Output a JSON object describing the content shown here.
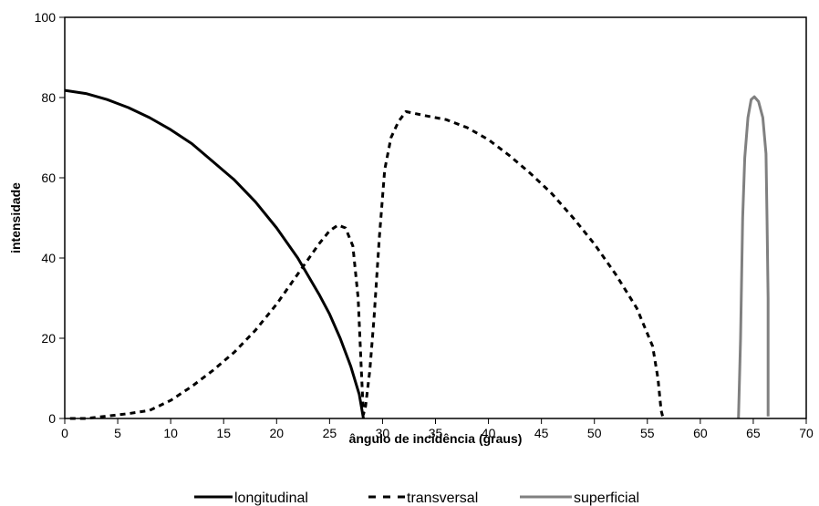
{
  "chart_data": {
    "type": "line",
    "title": "",
    "xlabel": "ângulo de incidência (graus)",
    "ylabel": "intensidade",
    "xlim": [
      0,
      70
    ],
    "ylim": [
      0,
      100
    ],
    "xticks": [
      0,
      5,
      10,
      15,
      20,
      25,
      30,
      35,
      40,
      45,
      50,
      55,
      60,
      65,
      70
    ],
    "yticks": [
      0,
      20,
      40,
      60,
      80,
      100
    ],
    "grid": false,
    "legend_position": "bottom",
    "series": [
      {
        "name": "longitudinal",
        "color": "#000000",
        "style": "solid",
        "points": [
          [
            0,
            81.8
          ],
          [
            2,
            81
          ],
          [
            4,
            79.5
          ],
          [
            6,
            77.5
          ],
          [
            8,
            75
          ],
          [
            10,
            72
          ],
          [
            12,
            68.5
          ],
          [
            14,
            64
          ],
          [
            16,
            59.5
          ],
          [
            18,
            54
          ],
          [
            20,
            47.5
          ],
          [
            22,
            40
          ],
          [
            24,
            31
          ],
          [
            25,
            26
          ],
          [
            26,
            20
          ],
          [
            27,
            13
          ],
          [
            27.8,
            6
          ],
          [
            28.2,
            0
          ]
        ]
      },
      {
        "name": "transversal",
        "color": "#000000",
        "style": "dashed",
        "points": [
          [
            0.5,
            0
          ],
          [
            2,
            0
          ],
          [
            4,
            0.6
          ],
          [
            6,
            1.2
          ],
          [
            8,
            2
          ],
          [
            10,
            4.5
          ],
          [
            12,
            8
          ],
          [
            14,
            12
          ],
          [
            16,
            16.5
          ],
          [
            18,
            22
          ],
          [
            20,
            28.5
          ],
          [
            22,
            36
          ],
          [
            24,
            43.5
          ],
          [
            25,
            46.8
          ],
          [
            25.8,
            48.2
          ],
          [
            26.5,
            47.5
          ],
          [
            27.2,
            43
          ],
          [
            27.7,
            30
          ],
          [
            28,
            12
          ],
          [
            28.2,
            1
          ],
          [
            28.4,
            3
          ],
          [
            28.8,
            12
          ],
          [
            29.2,
            25
          ],
          [
            29.7,
            45
          ],
          [
            30.2,
            62
          ],
          [
            30.8,
            70
          ],
          [
            31.5,
            74
          ],
          [
            32.2,
            76.5
          ],
          [
            34,
            75.5
          ],
          [
            36,
            74.5
          ],
          [
            38,
            72.5
          ],
          [
            40,
            69.5
          ],
          [
            42,
            65.5
          ],
          [
            44,
            61
          ],
          [
            46,
            56
          ],
          [
            48,
            50
          ],
          [
            50,
            43.5
          ],
          [
            52,
            36
          ],
          [
            54,
            27.5
          ],
          [
            55.5,
            18
          ],
          [
            56,
            10
          ],
          [
            56.3,
            2
          ],
          [
            56.5,
            0
          ]
        ]
      },
      {
        "name": "superficial",
        "color": "#808080",
        "style": "solid",
        "points": [
          [
            63.6,
            0
          ],
          [
            63.8,
            20
          ],
          [
            64,
            50
          ],
          [
            64.2,
            65
          ],
          [
            64.5,
            75
          ],
          [
            64.8,
            79.5
          ],
          [
            65.1,
            80.2
          ],
          [
            65.5,
            79
          ],
          [
            65.9,
            75
          ],
          [
            66.2,
            66
          ],
          [
            66.3,
            50
          ],
          [
            66.4,
            30
          ],
          [
            66.4,
            0.5
          ]
        ]
      }
    ]
  }
}
